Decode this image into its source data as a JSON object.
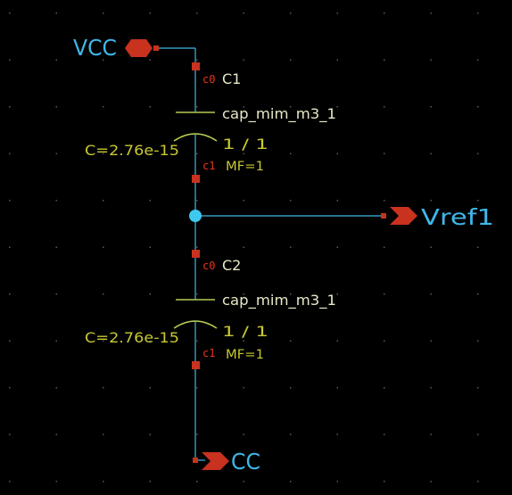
{
  "colors": {
    "background": "#000000",
    "grid_dot": "#5a5a5a",
    "wire": "#3fb7e8",
    "pin": "#c8321e",
    "pin_label": "#e8341c",
    "port_fill": "#c8321e",
    "port_label": "#3fb7e8",
    "symbol": "#b4cc52",
    "instance_label": "#e8e8c8",
    "parameter_text": "#c8c832",
    "junction": "#3fc8f0"
  },
  "ports": {
    "vcc": {
      "label": "VCC",
      "icon": "bidirectional-pin-icon"
    },
    "vref": {
      "label": "Vref1",
      "icon": "output-pin-icon"
    },
    "cc": {
      "label": "CC",
      "icon": "output-pin-icon"
    }
  },
  "capacitors": [
    {
      "instance": "C1",
      "cell": "cap_mim_m3_1",
      "ratio": "1 / 1",
      "mf": "MF=1",
      "capacitance": "C=2.76e-15",
      "pin_top": "c0",
      "pin_bottom": "c1"
    },
    {
      "instance": "C2",
      "cell": "cap_mim_m3_1",
      "ratio": "1 / 1",
      "mf": "MF=1",
      "capacitance": "C=2.76e-15",
      "pin_top": "c0",
      "pin_bottom": "c1"
    }
  ]
}
